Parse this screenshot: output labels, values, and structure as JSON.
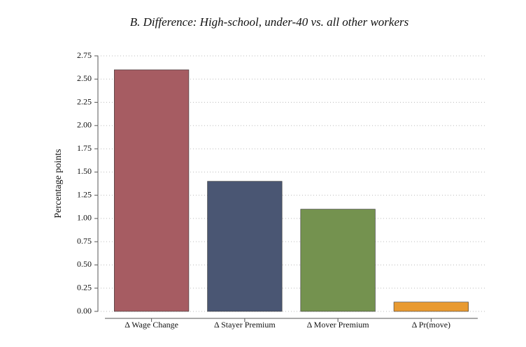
{
  "chart_data": {
    "type": "bar",
    "title": "B. Difference: High-school, under-40 vs. all other workers",
    "y_label": "Percentage points",
    "categories": [
      "Δ Wage Change",
      "Δ Stayer Premium",
      "Δ Mover Premium",
      "Δ Pr(move)"
    ],
    "values": [
      2.6,
      1.4,
      1.1,
      0.1
    ],
    "colors": [
      "#a65c62",
      "#4a5673",
      "#74924f",
      "#e89a31"
    ],
    "ylim": [
      0,
      2.75
    ],
    "yticks": [
      {
        "value": 0,
        "label": "0.00"
      },
      0.25,
      {
        "value": 0.5,
        "label": "0.50"
      },
      0.75,
      {
        "value": 1,
        "label": "1.00"
      },
      1.25,
      {
        "value": 1.5,
        "label": "1.50"
      },
      1.75,
      {
        "value": 2,
        "label": "2.00"
      },
      2.25,
      {
        "value": 2.5,
        "label": "2.50"
      },
      2.75
    ],
    "grid": true
  }
}
